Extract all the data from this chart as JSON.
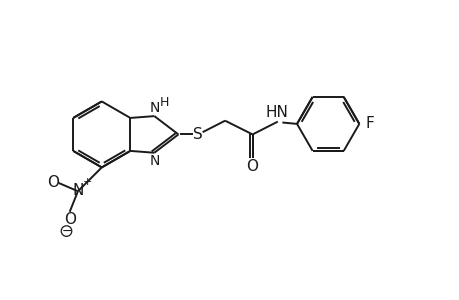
{
  "background_color": "#ffffff",
  "line_color": "#1a1a1a",
  "line_width": 1.4,
  "font_size": 10,
  "figure_width": 4.6,
  "figure_height": 3.0,
  "dpi": 100,
  "xlim": [
    0,
    10
  ],
  "ylim": [
    0,
    6.52
  ]
}
